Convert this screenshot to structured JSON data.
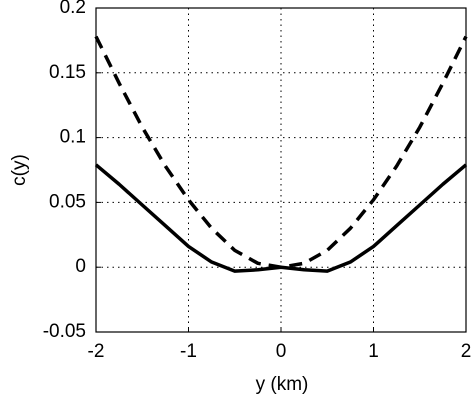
{
  "chart_data": {
    "type": "line",
    "x_label": "y (km)",
    "y_label": "c(y)",
    "x": [
      -2,
      -1.75,
      -1.5,
      -1.25,
      -1,
      -0.75,
      -0.5,
      -0.25,
      0,
      0.25,
      0.5,
      0.75,
      1,
      1.25,
      1.5,
      1.75,
      2
    ],
    "series": [
      {
        "color": "#000000",
        "style": "dashed",
        "values": [
          0.178,
          0.142,
          0.108,
          0.078,
          0.052,
          0.03,
          0.013,
          0.003,
          0,
          0.003,
          0.013,
          0.03,
          0.052,
          0.078,
          0.108,
          0.142,
          0.178
        ]
      },
      {
        "color": "#000000",
        "style": "solid",
        "values": [
          0.079,
          0.064,
          0.048,
          0.032,
          0.016,
          0.004,
          -0.003,
          -0.002,
          0,
          -0.002,
          -0.003,
          0.004,
          0.016,
          0.032,
          0.048,
          0.064,
          0.079
        ]
      }
    ],
    "xlim": [
      -2,
      2
    ],
    "xticks": [
      -2,
      -1,
      0,
      1,
      2
    ],
    "ylim": [
      -0.05,
      0.2
    ],
    "yticks": [
      -0.05,
      0,
      0.05,
      0.1,
      0.15,
      0.2
    ],
    "grid": true
  }
}
